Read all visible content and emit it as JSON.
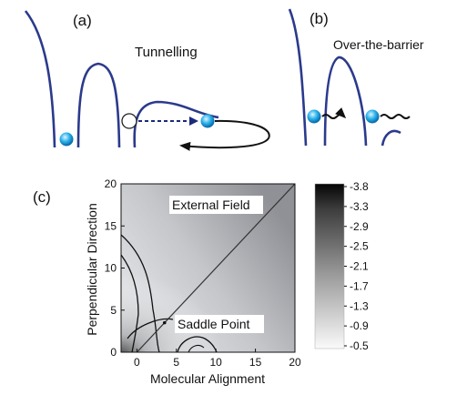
{
  "panel_a": {
    "label": "(a)",
    "title": "Tunnelling"
  },
  "panel_b": {
    "label": "(b)",
    "title": "Over-the-barrier"
  },
  "panel_c": {
    "label": "(c)",
    "annotation_field": "External Field",
    "annotation_saddle": "Saddle Point"
  },
  "colors": {
    "potential_curve": "#2b3a8c",
    "electron": "#1aa3e0",
    "arrow": "#1b2a7a",
    "contour": "#111111"
  },
  "chart_data": {
    "type": "heatmap",
    "title": "",
    "xlabel": "Molecular Alignment",
    "ylabel": "Perpendicular  Direction",
    "x_ticks": [
      "0",
      "5",
      "10",
      "15",
      "20"
    ],
    "y_ticks": [
      "0",
      "5",
      "10",
      "15",
      "20"
    ],
    "xlim": [
      -2,
      20
    ],
    "ylim": [
      0,
      20
    ],
    "colorbar": {
      "ticks": [
        "-3.8",
        "-3.3",
        "-2.9",
        "-2.5",
        "-2.1",
        "-1.7",
        "-1.3",
        "-0.9",
        "-0.5"
      ],
      "range": [
        -3.8,
        -0.5
      ],
      "colormap": "gray, dark at low values"
    },
    "field_line": {
      "from": [
        -2,
        -2
      ],
      "to": [
        20,
        20
      ]
    },
    "saddle_point": [
      3.5,
      3.5
    ]
  }
}
